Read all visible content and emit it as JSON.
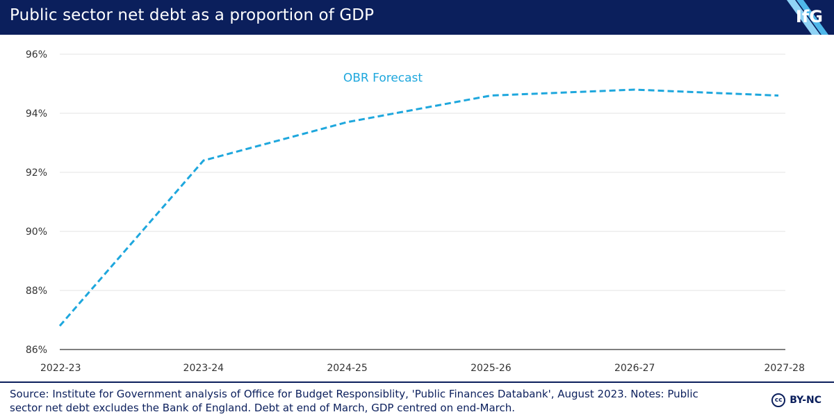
{
  "header": {
    "title": "Public sector net debt as a proportion of GDP",
    "logo_text": "IfG"
  },
  "chart_data": {
    "type": "line",
    "title": "Public sector net debt as a proportion of GDP",
    "xlabel": "",
    "ylabel": "",
    "categories": [
      "2022-23",
      "2023-24",
      "2024-25",
      "2025-26",
      "2026-27",
      "2027-28"
    ],
    "series": [
      {
        "name": "OBR Forecast",
        "values": [
          86.8,
          92.4,
          93.7,
          94.6,
          94.8,
          94.6
        ],
        "style": "dashed",
        "color": "#1ea7dd"
      }
    ],
    "ylim": [
      86,
      96
    ],
    "yticks": [
      86,
      88,
      90,
      92,
      94,
      96
    ],
    "ytick_labels": [
      "86%",
      "88%",
      "90%",
      "92%",
      "94%",
      "96%"
    ],
    "grid": true,
    "annotations": [
      {
        "text": "OBR Forecast",
        "series": "OBR Forecast"
      }
    ]
  },
  "footer": {
    "source_line1": "Source: Institute for Government analysis of Office for Budget Responsiblity, 'Public Finances Databank', August 2023. Notes: Public",
    "source_line2": "sector net debt excludes the Bank of England. Debt at end of March, GDP centred on end-March.",
    "license_text": "BY-NC",
    "cc_symbol": "cc"
  },
  "colors": {
    "header_bg": "#0b1f5c",
    "line": "#1ea7dd",
    "grid": "#e3e3e3",
    "axis": "#333333"
  }
}
